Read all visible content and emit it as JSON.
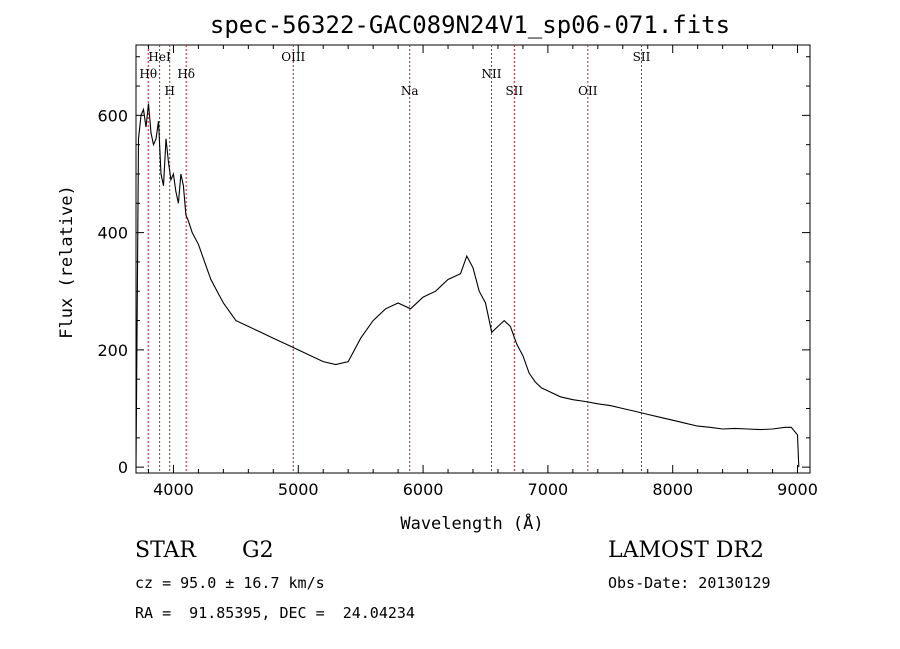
{
  "chart_data": {
    "type": "line",
    "title": "spec-56322-GAC089N24V1_sp06-071.fits",
    "xlabel": "Wavelength (Å)",
    "ylabel": "Flux (relative)",
    "xlim": [
      3700,
      9100
    ],
    "ylim": [
      -10,
      720
    ],
    "x_ticks": [
      4000,
      5000,
      6000,
      7000,
      8000,
      9000
    ],
    "x_tick_labels": [
      "4000",
      "5000",
      "6000",
      "7000",
      "8000",
      "9000"
    ],
    "y_ticks": [
      0,
      200,
      400,
      600
    ],
    "y_tick_labels": [
      "0",
      "200",
      "400",
      "600"
    ],
    "grid": false,
    "line_color": "#000000",
    "marker_color": "#b22222",
    "series": [
      {
        "x": [
          3700,
          3720,
          3740,
          3760,
          3780,
          3800,
          3820,
          3840,
          3860,
          3880,
          3900,
          3920,
          3940,
          3960,
          3980,
          4000,
          4020,
          4040,
          4060,
          4080,
          4100,
          4120,
          4150,
          4200,
          4250,
          4300,
          4350,
          4400,
          4500,
          4600,
          4700,
          4800,
          4900,
          5000,
          5100,
          5200,
          5300,
          5400,
          5500,
          5600,
          5700,
          5800,
          5900,
          6000,
          6100,
          6200,
          6300,
          6350,
          6400,
          6450,
          6500,
          6550,
          6600,
          6650,
          6700,
          6750,
          6800,
          6850,
          6900,
          6950,
          7000,
          7100,
          7200,
          7300,
          7400,
          7500,
          7600,
          7700,
          7800,
          7900,
          8000,
          8100,
          8200,
          8300,
          8400,
          8500,
          8600,
          8700,
          8800,
          8900,
          8950,
          9000,
          9010
        ],
        "y": [
          0,
          560,
          600,
          610,
          580,
          620,
          570,
          550,
          560,
          590,
          500,
          480,
          560,
          520,
          490,
          500,
          470,
          450,
          500,
          480,
          430,
          420,
          400,
          380,
          350,
          320,
          300,
          280,
          250,
          240,
          230,
          220,
          210,
          200,
          190,
          180,
          175,
          180,
          220,
          250,
          270,
          280,
          270,
          290,
          300,
          320,
          330,
          360,
          340,
          300,
          280,
          230,
          240,
          250,
          240,
          210,
          190,
          160,
          145,
          135,
          130,
          120,
          115,
          112,
          108,
          105,
          100,
          95,
          90,
          85,
          80,
          75,
          70,
          68,
          65,
          66,
          65,
          64,
          65,
          68,
          68,
          55,
          0
        ]
      }
    ],
    "spectral_lines": [
      {
        "name": "Hθ",
        "x": 3798,
        "row": 2
      },
      {
        "name": "HeI",
        "x": 3889,
        "row": 1
      },
      {
        "name": "H",
        "x": 3970,
        "row": 3
      },
      {
        "name": "Hδ",
        "x": 4102,
        "row": 2
      },
      {
        "name": "OIII",
        "x": 4960,
        "row": 1
      },
      {
        "name": "Na",
        "x": 5893,
        "row": 3
      },
      {
        "name": "NII",
        "x": 6548,
        "row": 2
      },
      {
        "name": "SII",
        "x": 6731,
        "row": 3
      },
      {
        "name": "OII",
        "x": 7320,
        "row": 3
      },
      {
        "name": "SII",
        "x": 7750,
        "row": 1
      }
    ]
  },
  "info": {
    "object_class": "STAR",
    "subclass": "G2",
    "survey": "LAMOST DR2",
    "redshift": "cz = 95.0 ± 16.7 km/s",
    "obs_date": "Obs-Date: 20130129",
    "coords": "RA =  91.85395, DEC =  24.04234"
  }
}
